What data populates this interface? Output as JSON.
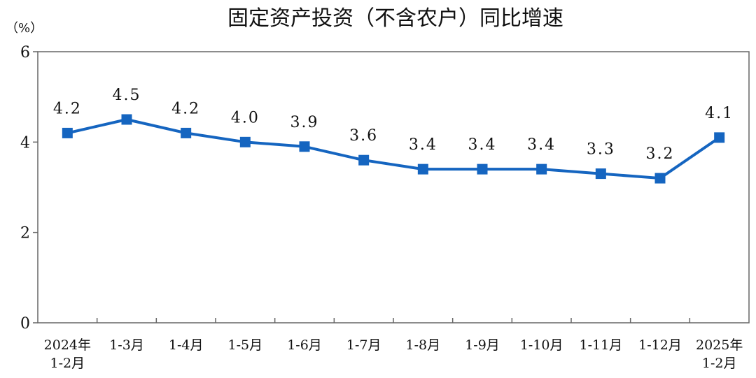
{
  "chart_data": {
    "type": "line",
    "title": "固定资产投资（不含农户）同比增速",
    "unit_label": "（%）",
    "xlabel": "",
    "ylabel": "",
    "ylim": [
      0,
      6
    ],
    "y_ticks": [
      "0",
      "2",
      "4",
      "6"
    ],
    "grid": false,
    "categories": [
      [
        "2024年",
        "1-2月"
      ],
      [
        "1-3月"
      ],
      [
        "1-4月"
      ],
      [
        "1-5月"
      ],
      [
        "1-6月"
      ],
      [
        "1-7月"
      ],
      [
        "1-8月"
      ],
      [
        "1-9月"
      ],
      [
        "1-10月"
      ],
      [
        "1-11月"
      ],
      [
        "1-12月"
      ],
      [
        "2025年",
        "1-2月"
      ]
    ],
    "series": [
      {
        "values": [
          4.2,
          4.5,
          4.2,
          4.0,
          3.9,
          3.6,
          3.4,
          3.4,
          3.4,
          3.3,
          3.2,
          4.1
        ],
        "labels": [
          "4.2",
          "4.5",
          "4.2",
          "4.0",
          "3.9",
          "3.6",
          "3.4",
          "3.4",
          "3.4",
          "3.3",
          "3.2",
          "4.1"
        ],
        "color": "#1565c0"
      }
    ]
  }
}
